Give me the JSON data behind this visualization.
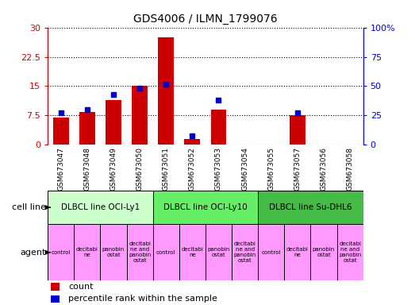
{
  "title": "GDS4006 / ILMN_1799076",
  "samples": [
    "GSM673047",
    "GSM673048",
    "GSM673049",
    "GSM673050",
    "GSM673051",
    "GSM673052",
    "GSM673053",
    "GSM673054",
    "GSM673055",
    "GSM673057",
    "GSM673056",
    "GSM673058"
  ],
  "counts": [
    7.0,
    8.5,
    11.5,
    15.0,
    27.5,
    1.5,
    9.0,
    0,
    0,
    7.5,
    0,
    0
  ],
  "percentiles": [
    27,
    30,
    43,
    48,
    52,
    8,
    38,
    0,
    0,
    27,
    0,
    0
  ],
  "ylim_left": [
    0,
    30
  ],
  "ylim_right": [
    0,
    100
  ],
  "yticks_left": [
    0,
    7.5,
    15,
    22.5,
    30
  ],
  "yticks_right": [
    0,
    25,
    50,
    75,
    100
  ],
  "ytick_labels_left": [
    "0",
    "7.5",
    "15",
    "22.5",
    "30"
  ],
  "ytick_labels_right": [
    "0",
    "25",
    "50",
    "75",
    "100%"
  ],
  "bar_color": "#CC0000",
  "dot_color": "#0000CC",
  "cell_line_colors": [
    "#CCFFCC",
    "#66EE66",
    "#44BB44"
  ],
  "agent_color": "#FF99FF",
  "bg_color": "#FFFFFF",
  "xtick_bg": "#DDDDDD",
  "tick_label_color_left": "#CC0000",
  "tick_label_color_right": "#0000CC",
  "title_color": "#000000",
  "cell_lines": [
    {
      "label": "DLBCL line OCI-Ly1",
      "start": 0,
      "end": 4
    },
    {
      "label": "DLBCL line OCI-Ly10",
      "start": 4,
      "end": 8
    },
    {
      "label": "DLBCL line Su-DHL6",
      "start": 8,
      "end": 12
    }
  ],
  "agent_labels": [
    "control",
    "decitabi\nne",
    "panobin\nostat",
    "decitabi\nne and\npanobin\nostat",
    "control",
    "decitabi\nne",
    "panobin\nostat",
    "decitabi\nne and\npanobin\nostat",
    "control",
    "decitabi\nne",
    "panobin\nostat",
    "decitabi\nne and\npanobin\nostat"
  ]
}
